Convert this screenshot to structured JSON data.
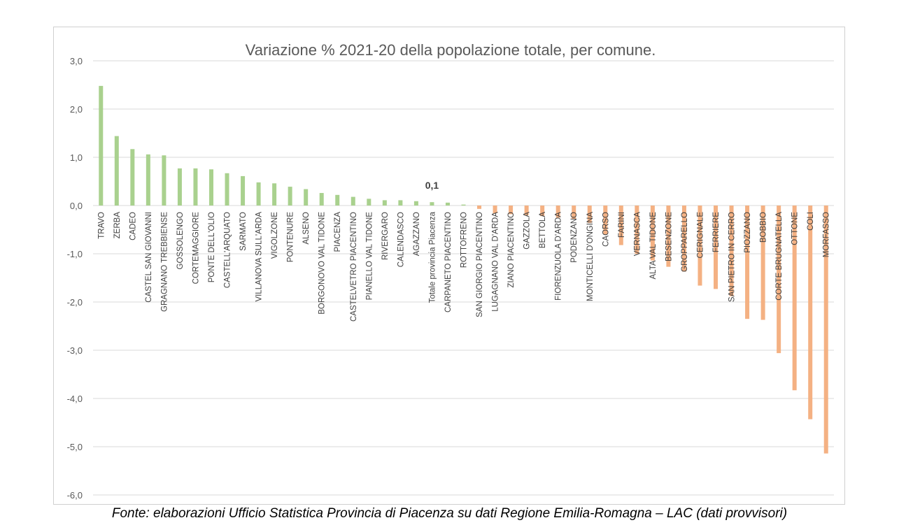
{
  "chart_data": {
    "type": "bar",
    "title": "Variazione %  2021-20 della popolazione totale, per comune.",
    "ylim": [
      -6.0,
      3.0
    ],
    "yticks": [
      "3,0",
      "2,0",
      "1,0",
      "0,0",
      "-1,0",
      "-2,0",
      "-3,0",
      "-4,0",
      "-5,0",
      "-6,0"
    ],
    "ytick_values": [
      3,
      2,
      1,
      0,
      -1,
      -2,
      -3,
      -4,
      -5,
      -6
    ],
    "grid": true,
    "positive_color": "#a9d18e",
    "negative_color": "#f4b183",
    "categories": [
      "TRAVO",
      "ZERBA",
      "CADEO",
      "CASTEL SAN GIOVANNI",
      "GRAGNANO TREBBIENSE",
      "GOSSOLENGO",
      "CORTEMAGGIORE",
      "PONTE DELL'OLIO",
      "CASTELL'ARQUATO",
      "SARMATO",
      "VILLANOVA SULL'ARDA",
      "VIGOLZONE",
      "PONTENURE",
      "ALSENO",
      "BORGONOVO VAL TIDONE",
      "PIACENZA",
      "CASTELVETRO PIACENTINO",
      "PIANELLO VAL TIDONE",
      "RIVERGARO",
      "CALENDASCO",
      "AGAZZANO",
      "Totale provincia Piacenza",
      "CARPANETO PIACENTINO",
      "ROTTOFRENO",
      "SAN GIORGIO PIACENTINO",
      "LUGAGNANO VAL D'ARDA",
      "ZIANO PIACENTINO",
      "GAZZOLA",
      "BETTOLA",
      "FIORENZUOLA D'ARDA",
      "PODENZANO",
      "MONTICELLI D'ONGINA",
      "CAORSO",
      "FARINI",
      "VERNASCA",
      "ALTA VAL TIDONE",
      "BESENZONE",
      "GROPPARELLO",
      "CERIGNALE",
      "FERRIERE",
      "SAN PIETRO IN CERRO",
      "PIOZZANO",
      "BOBBIO",
      "CORTE BRUGNATELLA",
      "OTTONE",
      "COLI",
      "MORFASSO"
    ],
    "values": [
      2.48,
      1.44,
      1.17,
      1.06,
      1.04,
      0.77,
      0.77,
      0.75,
      0.67,
      0.61,
      0.48,
      0.46,
      0.39,
      0.34,
      0.26,
      0.22,
      0.18,
      0.14,
      0.11,
      0.11,
      0.09,
      0.07,
      0.06,
      0.02,
      -0.07,
      -0.16,
      -0.18,
      -0.2,
      -0.22,
      -0.25,
      -0.28,
      -0.36,
      -0.6,
      -0.82,
      -1.0,
      -1.14,
      -1.27,
      -1.37,
      -1.66,
      -1.73,
      -1.88,
      -2.35,
      -2.37,
      -3.06,
      -3.83,
      -4.43,
      -5.14
    ],
    "annotations": [
      {
        "category": "Totale provincia Piacenza",
        "text": "0,1"
      }
    ]
  },
  "caption": "Fonte: elaborazioni Ufficio Statistica Provincia di Piacenza su dati Regione Emilia-Romagna – LAC (dati provvisori)"
}
